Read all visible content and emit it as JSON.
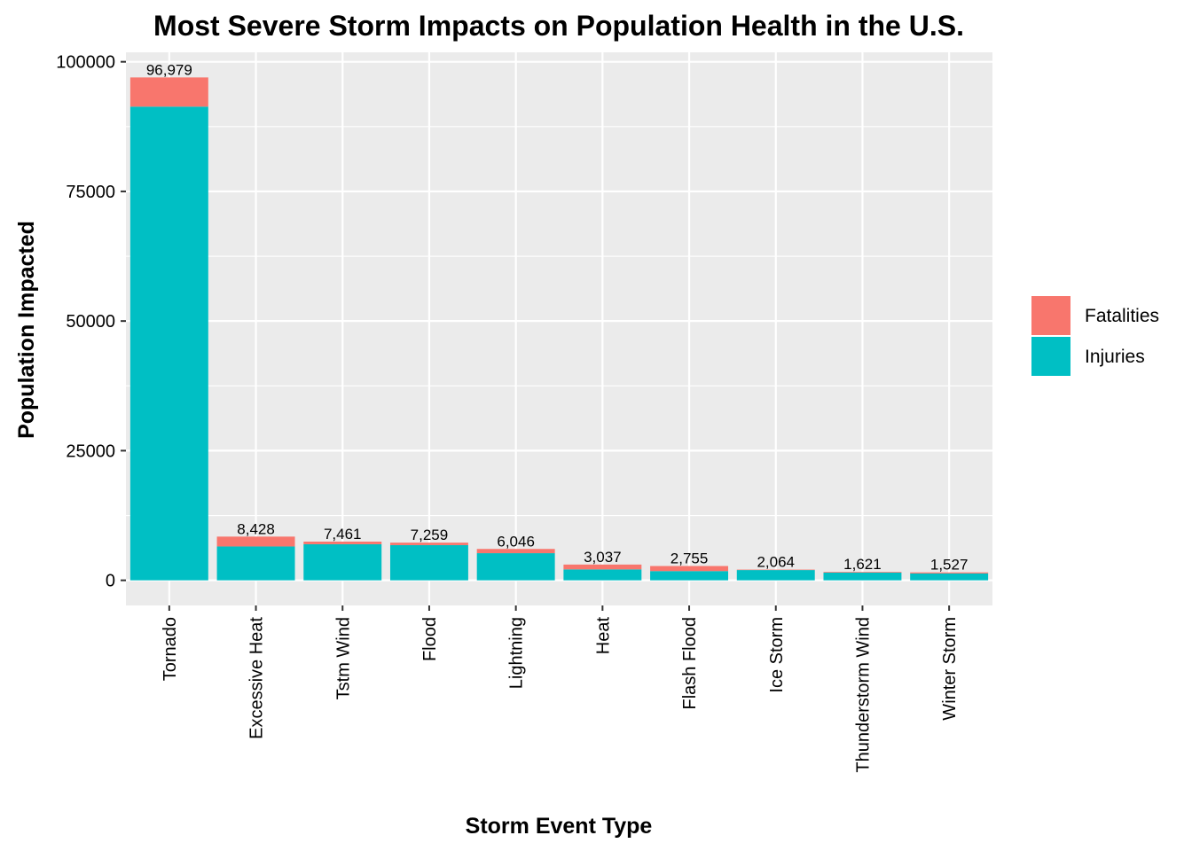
{
  "chart_data": {
    "type": "bar",
    "stacked": true,
    "title": "Most Severe Storm Impacts on Population Health in the U.S.",
    "xlabel": "Storm Event Type",
    "ylabel": "Population Impacted",
    "categories": [
      "Tornado",
      "Excessive Heat",
      "Tstm Wind",
      "Flood",
      "Lightning",
      "Heat",
      "Flash Flood",
      "Ice Storm",
      "Thunderstorm Wind",
      "Winter Storm"
    ],
    "series": [
      {
        "name": "Injuries",
        "color": "#00BFC4",
        "values": [
          91346,
          6525,
          6957,
          6789,
          5230,
          2100,
          1777,
          1975,
          1488,
          1321
        ]
      },
      {
        "name": "Fatalities",
        "color": "#F8766D",
        "values": [
          5633,
          1903,
          504,
          470,
          816,
          937,
          978,
          89,
          133,
          206
        ]
      }
    ],
    "totals": [
      96979,
      8428,
      7461,
      7259,
      6046,
      3037,
      2755,
      2064,
      1621,
      1527
    ],
    "total_labels": [
      "96,979",
      "8,428",
      "7,461",
      "7,259",
      "6,046",
      "3,037",
      "2,755",
      "2,064",
      "1,621",
      "1,527"
    ],
    "legend_order": [
      "Fatalities",
      "Injuries"
    ],
    "y_ticks": [
      0,
      25000,
      50000,
      75000,
      100000
    ],
    "y_tick_labels": [
      "0",
      "25000",
      "50000",
      "75000",
      "100000"
    ],
    "ylim": [
      -4849,
      101827
    ],
    "grid": true,
    "legend_position": "right",
    "panel_background": "#EBEBEB",
    "grid_color": "#FFFFFF"
  }
}
